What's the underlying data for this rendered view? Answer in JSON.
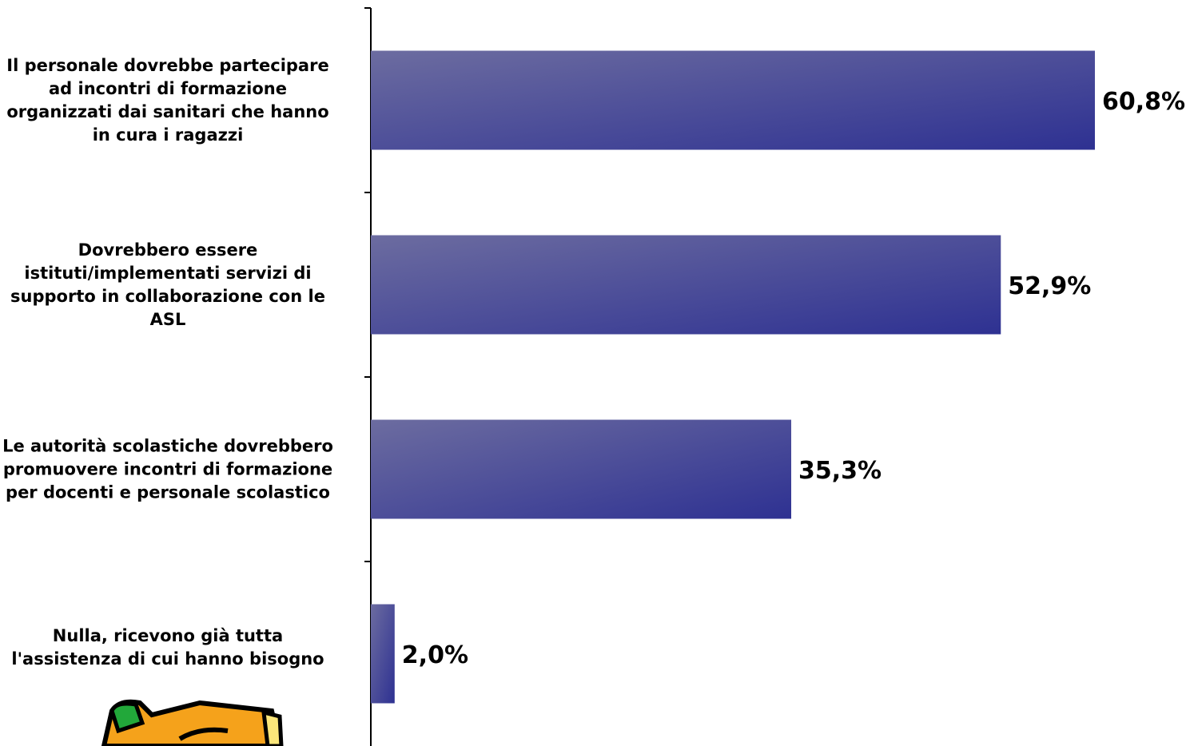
{
  "chart_data": {
    "type": "hbar",
    "categories": [
      "Il personale dovrebbe partecipare ad incontri di formazione organizzati dai sanitari che hanno in cura i ragazzi",
      "Dovrebbero essere istituti/implementati servizi di supporto in collaborazione con le ASL",
      "Le autorità scolastiche dovrebbero promuovere incontri di formazione per docenti e personale scolastico",
      "Nulla, ricevono già tutta l'assistenza di cui hanno bisogno"
    ],
    "values": [
      60.8,
      52.9,
      35.3,
      2.0
    ],
    "value_labels": [
      "60,8%",
      "52,9%",
      "35,3%",
      "2,0%"
    ],
    "color": "#2e3192"
  }
}
